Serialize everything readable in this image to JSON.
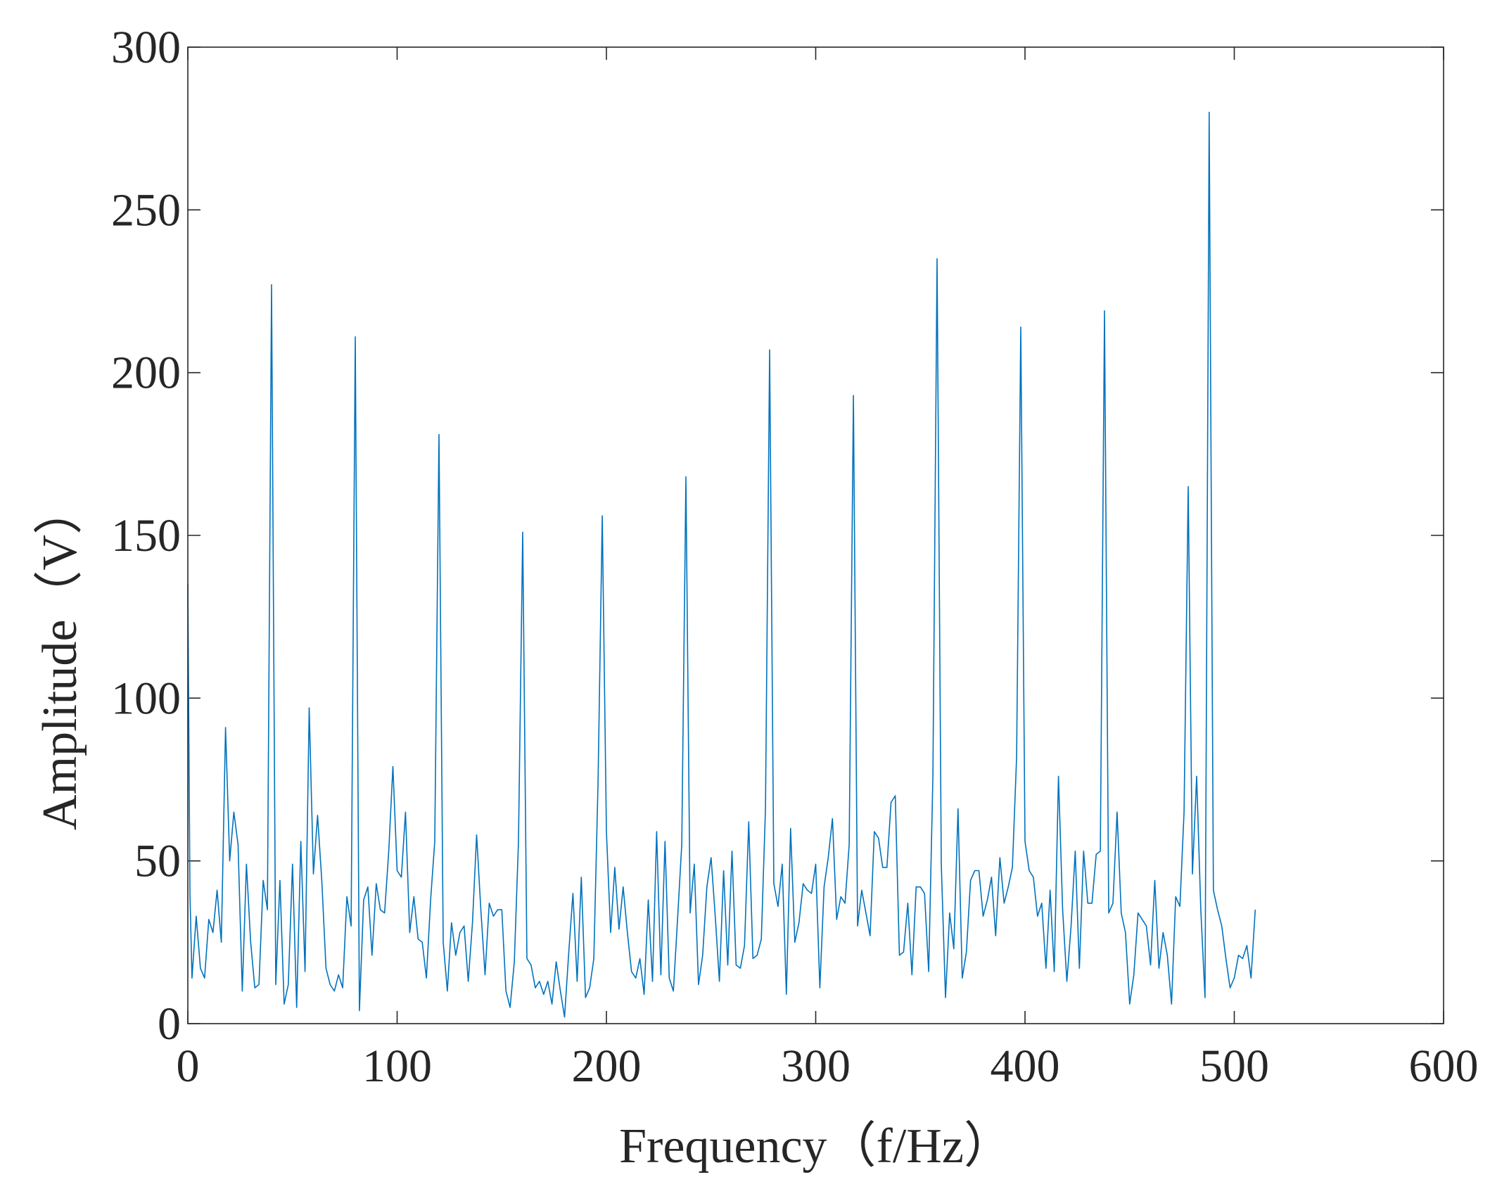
{
  "chart_data": {
    "type": "line",
    "title": "",
    "xlabel": "Frequency（f/Hz）",
    "ylabel": "Amplitude（V）",
    "xlim": [
      0,
      600
    ],
    "ylim": [
      0,
      300
    ],
    "xticks": [
      0,
      100,
      200,
      300,
      400,
      500,
      600
    ],
    "yticks": [
      0,
      50,
      100,
      150,
      200,
      250,
      300
    ],
    "grid": false,
    "line_color": "#0072BD",
    "series": [
      {
        "x": [
          0,
          1,
          2,
          4,
          6,
          8,
          10,
          12,
          14,
          16,
          18,
          20,
          22,
          24,
          26,
          28,
          30,
          32,
          34,
          36,
          38,
          40,
          42,
          44,
          46,
          48,
          50,
          52,
          54,
          56,
          58,
          60,
          62,
          64,
          66,
          68,
          70,
          72,
          74,
          76,
          78,
          80,
          82,
          84,
          86,
          88,
          90,
          92,
          94,
          96,
          98,
          100,
          102,
          104,
          106,
          108,
          110,
          112,
          114,
          116,
          118,
          120,
          122,
          124,
          126,
          128,
          130,
          132,
          134,
          136,
          138,
          140,
          142,
          144,
          146,
          148,
          150,
          152,
          154,
          156,
          158,
          160,
          162,
          164,
          166,
          168,
          170,
          172,
          174,
          176,
          178,
          180,
          182,
          184,
          186,
          188,
          190,
          192,
          194,
          196,
          198,
          200,
          202,
          204,
          206,
          208,
          210,
          212,
          214,
          216,
          218,
          220,
          222,
          224,
          226,
          228,
          230,
          232,
          234,
          236,
          238,
          240,
          242,
          244,
          246,
          248,
          250,
          252,
          254,
          256,
          258,
          260,
          262,
          264,
          266,
          268,
          270,
          272,
          274,
          276,
          278,
          280,
          282,
          284,
          286,
          288,
          290,
          292,
          294,
          296,
          298,
          300,
          302,
          304,
          306,
          308,
          310,
          312,
          314,
          316,
          318,
          320,
          322,
          324,
          326,
          328,
          330,
          332,
          334,
          336,
          338,
          340,
          342,
          344,
          346,
          348,
          350,
          352,
          354,
          356,
          358,
          360,
          362,
          364,
          366,
          368,
          370,
          372,
          374,
          376,
          378,
          380,
          382,
          384,
          386,
          388,
          390,
          392,
          394,
          396,
          398,
          400,
          402,
          404,
          406,
          408,
          410,
          412,
          414,
          416,
          418,
          420,
          422,
          424,
          426,
          428,
          430,
          432,
          434,
          436,
          438,
          440,
          442,
          444,
          446,
          448,
          450,
          452,
          454,
          456,
          458,
          460,
          462,
          464,
          466,
          468,
          470,
          472,
          474,
          476,
          478,
          480,
          482,
          484,
          486,
          488,
          490,
          492,
          494,
          496,
          498,
          500,
          502,
          504,
          506,
          508,
          510
        ],
        "y": [
          135,
          40,
          14,
          33,
          17,
          14,
          32,
          28,
          41,
          25,
          91,
          50,
          65,
          55,
          10,
          49,
          25,
          11,
          12,
          44,
          35,
          227,
          12,
          44,
          6,
          12,
          49,
          5,
          56,
          16,
          97,
          46,
          64,
          44,
          17,
          12,
          10,
          15,
          11,
          39,
          30,
          211,
          4,
          38,
          42,
          21,
          43,
          35,
          34,
          53,
          79,
          47,
          45,
          65,
          28,
          39,
          26,
          25,
          14,
          38,
          56,
          181,
          25,
          10,
          31,
          21,
          28,
          30,
          13,
          31,
          58,
          35,
          15,
          37,
          33,
          35,
          35,
          10,
          5,
          19,
          56,
          151,
          20,
          18,
          11,
          13,
          9,
          13,
          6,
          19,
          10,
          2,
          22,
          40,
          13,
          45,
          8,
          11,
          20,
          74,
          156,
          59,
          28,
          48,
          29,
          42,
          28,
          16,
          14,
          20,
          9,
          38,
          13,
          59,
          15,
          56,
          14,
          10,
          32,
          55,
          168,
          34,
          49,
          12,
          21,
          42,
          51,
          33,
          13,
          47,
          18,
          53,
          18,
          17,
          24,
          62,
          20,
          21,
          26,
          66,
          207,
          43,
          36,
          49,
          9,
          60,
          25,
          31,
          43,
          41,
          40,
          49,
          11,
          42,
          51,
          63,
          32,
          39,
          37,
          55,
          193,
          30,
          41,
          34,
          27,
          59,
          57,
          48,
          48,
          68,
          70,
          21,
          22,
          37,
          15,
          42,
          42,
          40,
          16,
          76,
          235,
          49,
          8,
          34,
          23,
          66,
          14,
          22,
          44,
          47,
          47,
          33,
          38,
          45,
          27,
          51,
          37,
          42,
          48,
          82,
          214,
          56,
          47,
          45,
          33,
          37,
          17,
          41,
          16,
          76,
          35,
          13,
          30,
          53,
          17,
          53,
          37,
          37,
          52,
          53,
          219,
          34,
          37,
          65,
          34,
          28,
          6,
          15,
          34,
          32,
          30,
          18,
          44,
          17,
          28,
          21,
          6,
          39,
          36,
          65,
          165,
          46,
          76,
          35,
          8,
          280,
          41,
          35,
          30,
          20,
          11,
          14,
          21,
          20,
          24,
          14,
          35
        ]
      }
    ]
  }
}
